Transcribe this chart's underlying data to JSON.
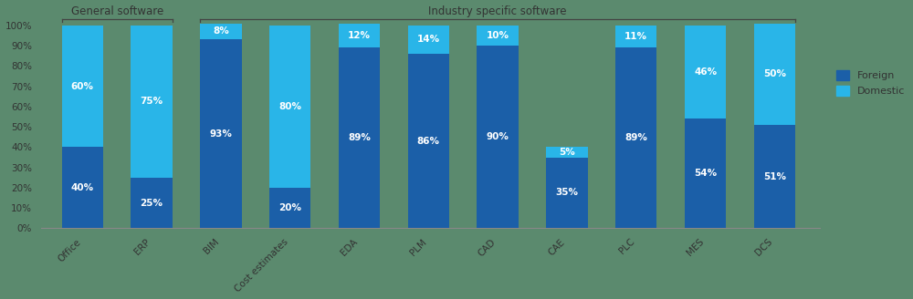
{
  "categories": [
    "Office",
    "ERP",
    "BIM",
    "Cost estimates",
    "EDA",
    "PLM",
    "CAD",
    "CAE",
    "PLC",
    "MES",
    "DCS"
  ],
  "foreign": [
    40,
    25,
    93,
    20,
    89,
    86,
    90,
    35,
    89,
    54,
    51
  ],
  "domestic": [
    60,
    75,
    8,
    80,
    12,
    14,
    10,
    5,
    11,
    46,
    50
  ],
  "foreign_color": "#1B5FA8",
  "domestic_color": "#29B5E8",
  "general_software_indices": [
    0,
    1
  ],
  "industry_software_indices": [
    2,
    3,
    4,
    5,
    6,
    7,
    8,
    9,
    10
  ],
  "general_label": "General software",
  "industry_label": "Industry specific software",
  "legend_foreign": "Foreign",
  "legend_domestic": "Domestic",
  "yticks": [
    0,
    10,
    20,
    30,
    40,
    50,
    60,
    70,
    80,
    90,
    100
  ],
  "ytick_labels": [
    "0%",
    "10%",
    "20%",
    "30%",
    "40%",
    "50%",
    "60%",
    "70%",
    "80%",
    "90%",
    "100%"
  ],
  "background_color": "#5b8a6e",
  "bar_width": 0.6,
  "figsize": [
    10.0,
    3.28
  ],
  "dpi": 100
}
